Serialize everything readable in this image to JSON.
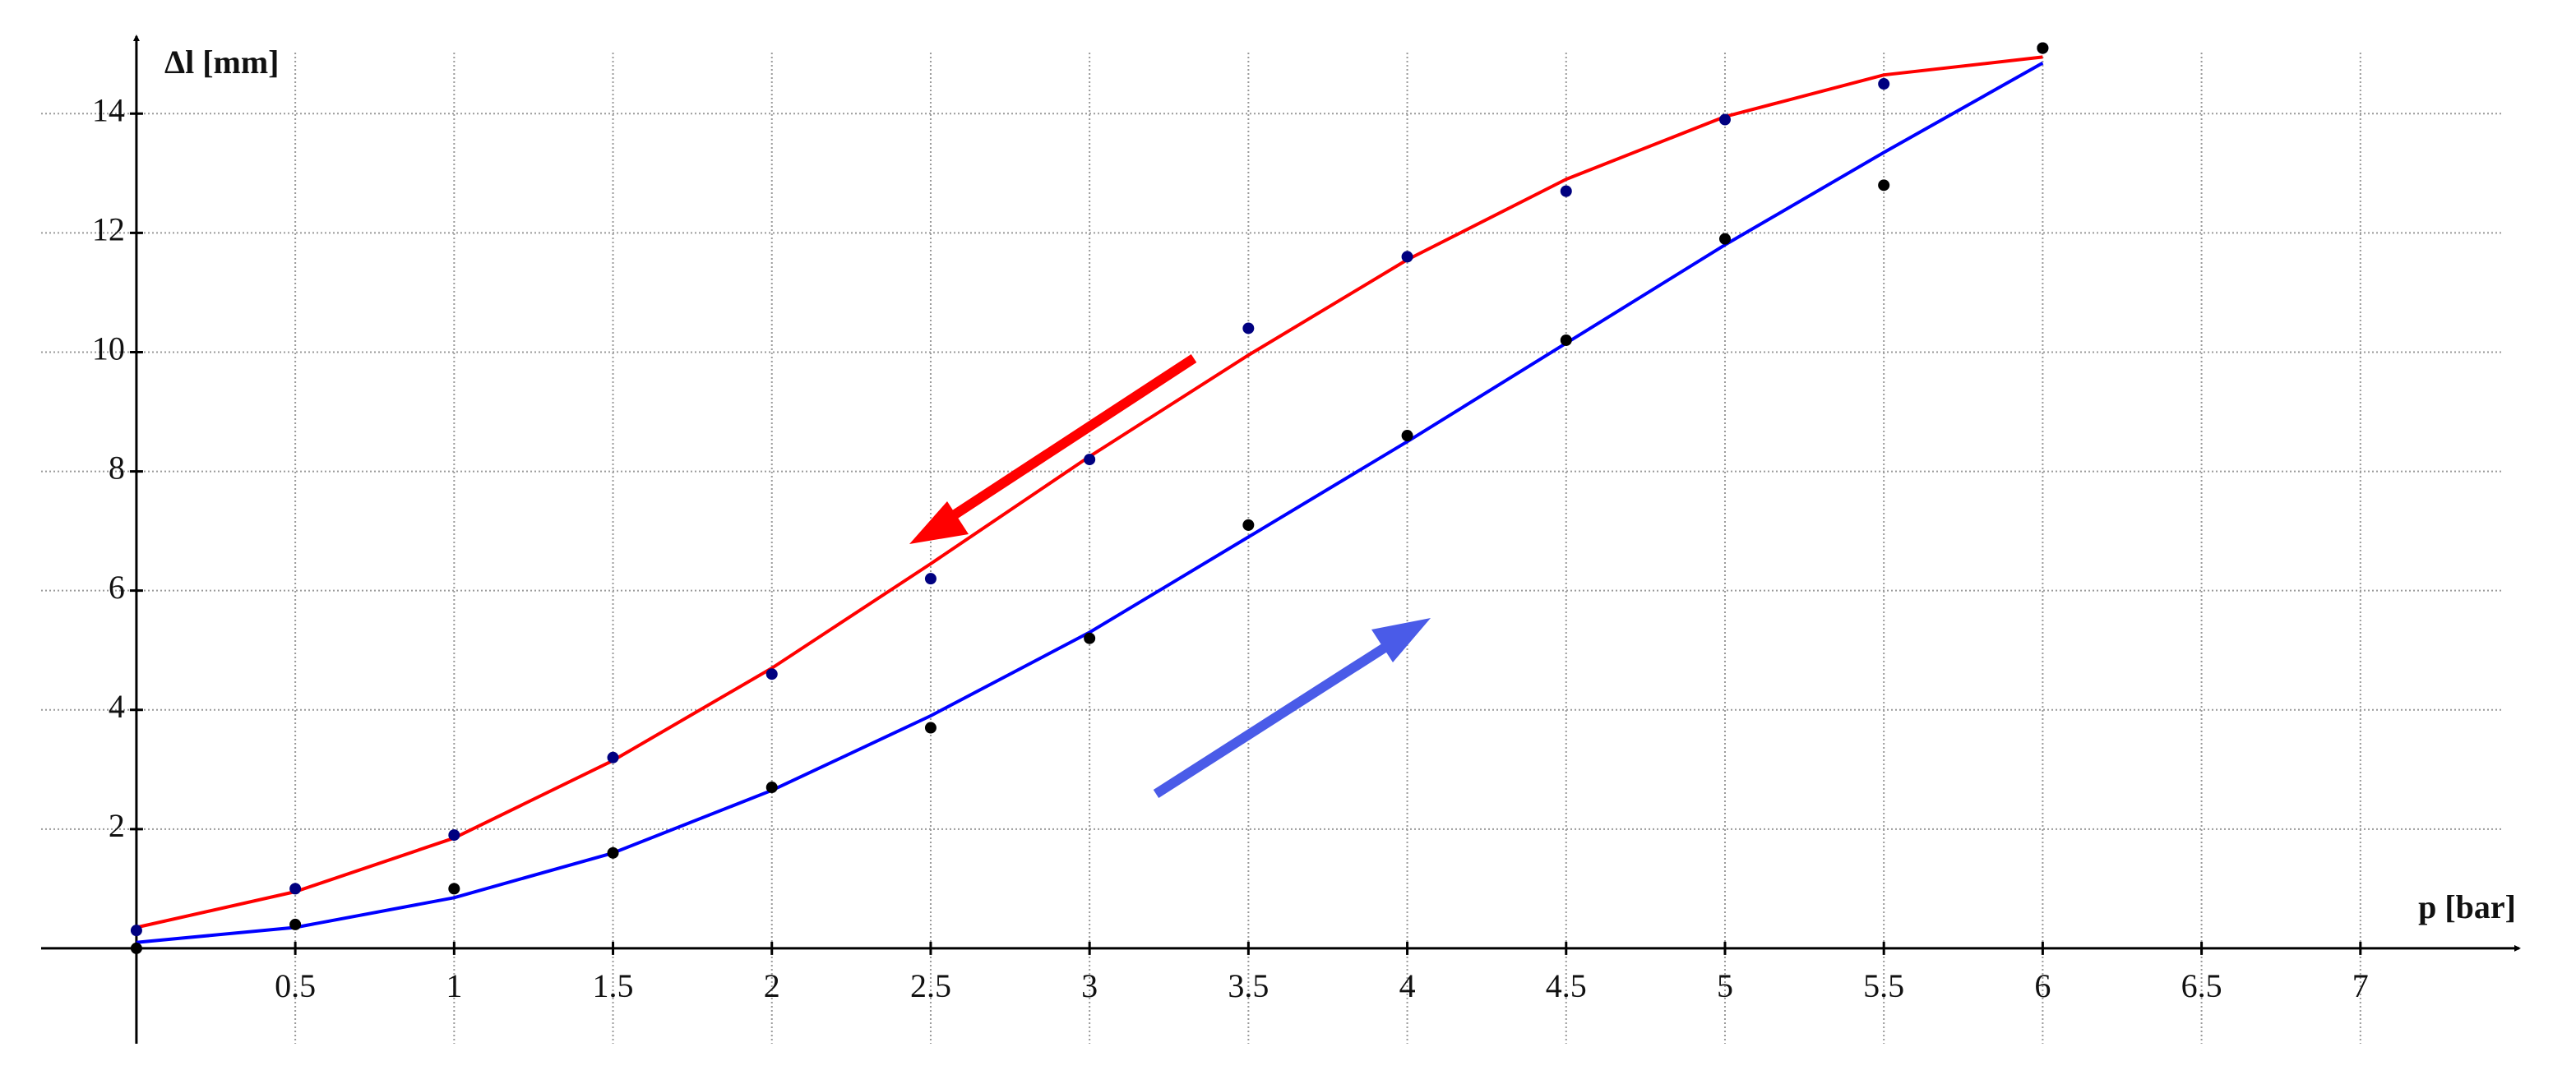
{
  "chart_data": {
    "type": "line",
    "x_label": "p [bar]",
    "y_label": "Δl [mm]",
    "x": [
      0,
      0.5,
      1,
      1.5,
      2,
      2.5,
      3,
      3.5,
      4,
      4.5,
      5,
      5.5,
      6
    ],
    "series": [
      {
        "style": "line",
        "color": "#ff0000",
        "values": [
          0.35,
          0.95,
          1.85,
          3.15,
          4.7,
          6.45,
          8.25,
          9.95,
          11.55,
          12.9,
          13.95,
          14.65,
          14.95
        ]
      },
      {
        "style": "line",
        "color": "#0000ff",
        "values": [
          0.1,
          0.35,
          0.85,
          1.6,
          2.65,
          3.9,
          5.3,
          6.9,
          8.5,
          10.15,
          11.8,
          13.35,
          14.85
        ]
      },
      {
        "style": "points",
        "color": "#000080",
        "values": [
          0.3,
          1.0,
          1.9,
          3.2,
          4.6,
          6.2,
          8.2,
          10.4,
          11.6,
          12.7,
          13.9,
          14.5,
          15.1
        ]
      },
      {
        "style": "points",
        "color": "#000000",
        "values": [
          0,
          0.4,
          1.0,
          1.6,
          2.7,
          3.7,
          5.2,
          7.1,
          8.6,
          10.2,
          11.9,
          12.8,
          15.1
        ]
      }
    ],
    "xlim": [
      -0.3,
      7.5
    ],
    "ylim": [
      -1.6,
      15.3
    ],
    "xticks": [
      0.5,
      1,
      1.5,
      2,
      2.5,
      3,
      3.5,
      4,
      4.5,
      5,
      5.5,
      6,
      6.5,
      7
    ],
    "yticks": [
      2,
      4,
      6,
      8,
      10,
      12,
      14
    ],
    "grid": true
  }
}
